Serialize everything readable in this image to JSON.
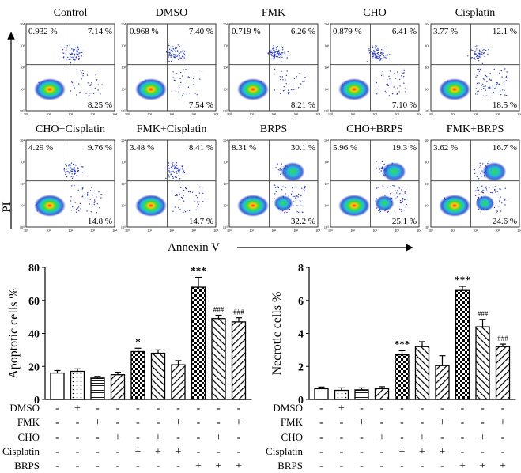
{
  "flow": {
    "x_axis_label": "Annexin V",
    "y_axis_label": "PI",
    "tick_labels": [
      "10⁰",
      "10¹",
      "10²",
      "10³",
      "10⁴"
    ],
    "panels": [
      {
        "title": "Control",
        "ul": "0.932 %",
        "ur": "7.14 %",
        "lr": "8.25 %"
      },
      {
        "title": "DMSO",
        "ul": "0.968 %",
        "ur": "7.40 %",
        "lr": "7.54 %"
      },
      {
        "title": "FMK",
        "ul": "0.719 %",
        "ur": "6.26 %",
        "lr": "8.21 %"
      },
      {
        "title": "CHO",
        "ul": "0.879 %",
        "ur": "6.41 %",
        "lr": "7.10 %"
      },
      {
        "title": "Cisplatin",
        "ul": "3.77 %",
        "ur": "12.1 %",
        "lr": "18.5 %"
      },
      {
        "title": "CHO+Cisplatin",
        "ul": "4.29 %",
        "ur": "9.76 %",
        "lr": "14.8 %"
      },
      {
        "title": "FMK+Cisplatin",
        "ul": "3.48 %",
        "ur": "8.41 %",
        "lr": "14.7 %"
      },
      {
        "title": "BRPS",
        "ul": "8.31 %",
        "ur": "30.1 %",
        "lr": "32.2 %"
      },
      {
        "title": "CHO+BRPS",
        "ul": "5.96 %",
        "ur": "19.3 %",
        "lr": "25.1 %"
      },
      {
        "title": "FMK+BRPS",
        "ul": "3.62 %",
        "ur": "16.7 %",
        "lr": "24.6 %"
      }
    ]
  },
  "chart_data": [
    {
      "type": "bar",
      "ylabel": "Apoptotic cells  %",
      "ylim": [
        0,
        80
      ],
      "yticks": [
        "0",
        "20",
        "40",
        "60",
        "80"
      ],
      "values": [
        16,
        17,
        13,
        15,
        29,
        28,
        21,
        68,
        49,
        47
      ],
      "errors": [
        1.5,
        1.5,
        1,
        1.5,
        2,
        2,
        2.5,
        6,
        2,
        2.5
      ],
      "patterns": [
        "none",
        "dots",
        "lines-h",
        "hatch-fwd",
        "checker",
        "hatch-back",
        "hatch-fwd",
        "checker",
        "hatch-back",
        "hatch-fwd"
      ],
      "annotations": [
        "",
        "",
        "",
        "",
        "*",
        "",
        "",
        "***",
        "###",
        "###"
      ]
    },
    {
      "type": "bar",
      "ylabel": "Necrotic cells  %",
      "ylim": [
        0,
        8
      ],
      "yticks": [
        "0",
        "2",
        "4",
        "6",
        "8"
      ],
      "values": [
        0.65,
        0.55,
        0.58,
        0.65,
        2.7,
        3.2,
        2.05,
        6.6,
        4.4,
        3.2
      ],
      "errors": [
        0.1,
        0.15,
        0.12,
        0.12,
        0.25,
        0.3,
        0.6,
        0.25,
        0.45,
        0.15
      ],
      "patterns": [
        "none",
        "dots",
        "lines-h",
        "hatch-fwd",
        "checker",
        "hatch-back",
        "hatch-fwd",
        "checker",
        "hatch-back",
        "hatch-fwd"
      ],
      "annotations": [
        "",
        "",
        "",
        "",
        "***",
        "",
        "",
        "***",
        "###",
        "###"
      ]
    }
  ],
  "treatment_table": {
    "rows": [
      {
        "label": "DMSO",
        "marks": [
          "-",
          "+",
          "-",
          "-",
          "-",
          "-",
          "-",
          "-",
          "-",
          "-"
        ]
      },
      {
        "label": "FMK",
        "marks": [
          "-",
          "-",
          "+",
          "-",
          "-",
          "-",
          "+",
          "-",
          "-",
          "+"
        ]
      },
      {
        "label": "CHO",
        "marks": [
          "-",
          "-",
          "-",
          "+",
          "-",
          "+",
          "-",
          "-",
          "+",
          "-"
        ]
      },
      {
        "label": "Cisplatin",
        "marks": [
          "-",
          "-",
          "-",
          "-",
          "+",
          "+",
          "+",
          "-",
          "-",
          "-"
        ]
      },
      {
        "label": "BRPS",
        "marks": [
          "-",
          "-",
          "-",
          "-",
          "-",
          "-",
          "-",
          "+",
          "+",
          "+"
        ]
      }
    ]
  }
}
